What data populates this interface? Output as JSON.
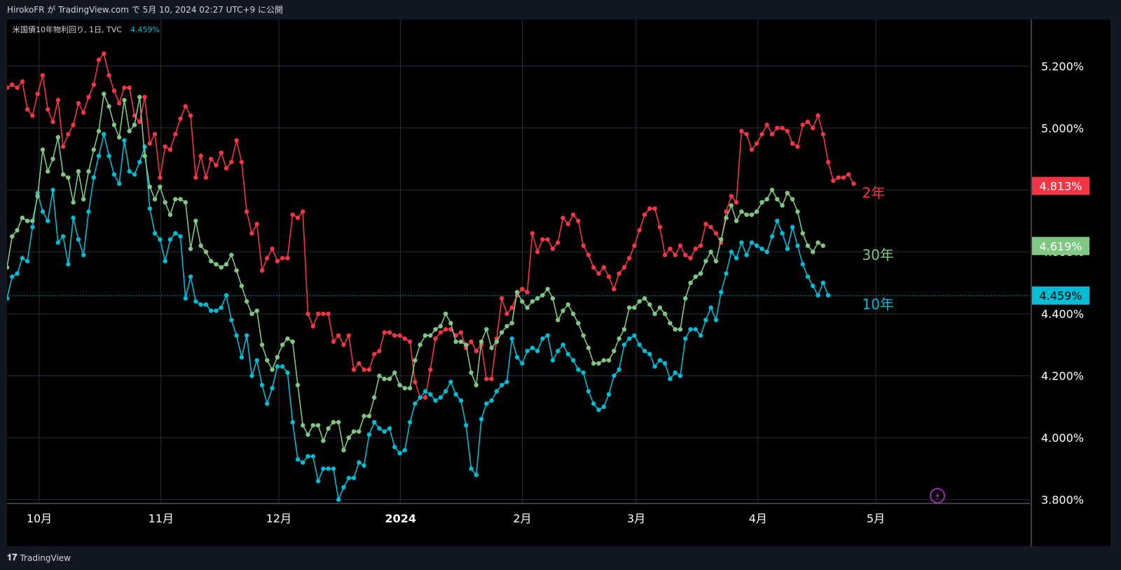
{
  "header": {
    "publish_text": "HirokoFR が TradingView.com で 5月 10, 2024 02:27 UTC+9 に公開"
  },
  "legend": {
    "symbol": "米国債10年物利回り, 1日, TVC",
    "value": "4.459%"
  },
  "footer": {
    "brand": "TradingView",
    "logo_icon": "tradingview-logo-icon"
  },
  "colors": {
    "y2": "#f23645",
    "y10": "#00bcd4",
    "y30": "#81c784",
    "grid": "#2a2e39",
    "axis_text": "#ffffff"
  },
  "chart_data": {
    "type": "line",
    "title": "米国債10年物利回り, 1日, TVC",
    "x_ticks": [
      {
        "label": "10月",
        "day": 0
      },
      {
        "label": "11月",
        "day": 31
      },
      {
        "label": "12月",
        "day": 61
      },
      {
        "label": "2024",
        "day": 92
      },
      {
        "label": "2月",
        "day": 123
      },
      {
        "label": "3月",
        "day": 152
      },
      {
        "label": "4月",
        "day": 183
      },
      {
        "label": "5月",
        "day": 213
      }
    ],
    "y_ticks": [
      "5.200%",
      "5.000%",
      "4.800%",
      "4.600%",
      "4.400%",
      "4.200%",
      "4.000%",
      "3.800%"
    ],
    "y_tick_values": [
      5.2,
      5.0,
      4.8,
      4.6,
      4.4,
      4.2,
      4.0,
      3.8
    ],
    "ylim": [
      3.79,
      5.35
    ],
    "grid": true,
    "current_line": 4.459,
    "series": [
      {
        "name": "2年",
        "key": "y2",
        "last_label": "4.813%",
        "last_value": 4.813,
        "values": [
          5.13,
          5.14,
          5.13,
          5.15,
          5.06,
          5.04,
          5.11,
          5.17,
          5.06,
          5.02,
          5.09,
          4.94,
          4.98,
          5.01,
          5.08,
          5.05,
          5.1,
          5.14,
          5.22,
          5.24,
          5.17,
          5.12,
          5.08,
          5.13,
          5.13,
          5.04,
          5.02,
          5.1,
          4.95,
          4.98,
          4.84,
          4.94,
          4.93,
          4.98,
          5.03,
          5.07,
          5.04,
          4.84,
          4.91,
          4.84,
          4.9,
          4.88,
          4.92,
          4.87,
          4.89,
          4.96,
          4.89,
          4.73,
          4.66,
          4.69,
          4.54,
          4.58,
          4.61,
          4.57,
          4.58,
          4.58,
          4.72,
          4.71,
          4.73,
          4.4,
          4.36,
          4.4,
          4.4,
          4.4,
          4.31,
          4.33,
          4.3,
          4.33,
          4.22,
          4.24,
          4.22,
          4.22,
          4.27,
          4.28,
          4.34,
          4.34,
          4.33,
          4.33,
          4.32,
          4.31,
          4.18,
          4.13,
          4.13,
          4.22,
          4.32,
          4.34,
          4.35,
          4.35,
          4.33,
          4.34,
          4.29,
          4.31,
          4.28,
          4.3,
          4.19,
          4.19,
          4.32,
          4.45,
          4.4,
          4.42,
          4.46,
          4.48,
          4.47,
          4.66,
          4.6,
          4.64,
          4.64,
          4.61,
          4.63,
          4.71,
          4.69,
          4.72,
          4.7,
          4.62,
          4.59,
          4.55,
          4.53,
          4.55,
          4.52,
          4.48,
          4.53,
          4.55,
          4.58,
          4.62,
          4.67,
          4.72,
          4.74,
          4.74,
          4.68,
          4.59,
          4.61,
          4.59,
          4.62,
          4.59,
          4.58,
          4.61,
          4.62,
          4.69,
          4.68,
          4.66,
          4.63,
          4.73,
          4.78,
          4.76,
          4.99,
          4.98,
          4.93,
          4.95,
          4.98,
          5.01,
          4.98,
          5.0,
          5.0,
          4.99,
          4.95,
          4.94,
          5.01,
          5.02,
          5.0,
          5.04,
          4.98,
          4.89,
          4.83,
          4.84,
          4.84,
          4.85,
          4.82
        ]
      },
      {
        "name": "10年",
        "key": "y10",
        "last_label": "4.459%",
        "last_value": 4.459,
        "values": [
          4.45,
          4.52,
          4.53,
          4.58,
          4.57,
          4.68,
          4.79,
          4.73,
          4.7,
          4.8,
          4.63,
          4.65,
          4.56,
          4.71,
          4.64,
          4.59,
          4.73,
          4.84,
          4.91,
          4.98,
          4.91,
          4.85,
          4.82,
          4.96,
          4.86,
          4.85,
          4.89,
          4.94,
          4.74,
          4.66,
          4.64,
          4.57,
          4.64,
          4.66,
          4.65,
          4.45,
          4.52,
          4.44,
          4.43,
          4.43,
          4.41,
          4.41,
          4.42,
          4.46,
          4.38,
          4.33,
          4.26,
          4.33,
          4.2,
          4.25,
          4.17,
          4.11,
          4.16,
          4.23,
          4.23,
          4.21,
          4.05,
          3.93,
          3.92,
          3.94,
          3.94,
          3.86,
          3.9,
          3.9,
          3.9,
          3.8,
          3.84,
          3.87,
          3.87,
          3.92,
          3.91,
          4.01,
          4.05,
          4.03,
          4.02,
          4.03,
          3.97,
          3.95,
          3.96,
          4.05,
          4.11,
          4.13,
          4.15,
          4.14,
          4.12,
          4.13,
          4.15,
          4.18,
          4.14,
          4.12,
          4.04,
          3.9,
          3.88,
          4.06,
          4.11,
          4.12,
          4.15,
          4.17,
          4.18,
          4.32,
          4.26,
          4.24,
          4.28,
          4.29,
          4.28,
          4.32,
          4.33,
          4.25,
          4.28,
          4.3,
          4.27,
          4.25,
          4.22,
          4.21,
          4.15,
          4.11,
          4.09,
          4.1,
          4.14,
          4.2,
          4.22,
          4.3,
          4.32,
          4.33,
          4.3,
          4.28,
          4.27,
          4.23,
          4.25,
          4.24,
          4.19,
          4.21,
          4.2,
          4.32,
          4.35,
          4.35,
          4.33,
          4.38,
          4.42,
          4.38,
          4.47,
          4.53,
          4.6,
          4.58,
          4.63,
          4.59,
          4.63,
          4.62,
          4.61,
          4.6,
          4.65,
          4.7,
          4.66,
          4.61,
          4.68,
          4.62,
          4.56,
          4.52,
          4.49,
          4.46,
          4.5,
          4.46
        ]
      },
      {
        "name": "30年",
        "key": "y30",
        "last_label": "4.619%",
        "last_value": 4.619,
        "values": [
          4.55,
          4.65,
          4.67,
          4.71,
          4.7,
          4.7,
          4.78,
          4.93,
          4.86,
          4.9,
          4.97,
          4.85,
          4.84,
          4.76,
          4.86,
          4.77,
          4.86,
          4.93,
          4.99,
          5.11,
          5.07,
          5.01,
          4.97,
          5.09,
          4.99,
          5.01,
          5.1,
          4.91,
          4.81,
          4.77,
          4.81,
          4.76,
          4.72,
          4.77,
          4.77,
          4.76,
          4.61,
          4.7,
          4.62,
          4.6,
          4.57,
          4.56,
          4.55,
          4.56,
          4.59,
          4.54,
          4.49,
          4.44,
          4.4,
          4.41,
          4.3,
          4.25,
          4.22,
          4.26,
          4.3,
          4.32,
          4.31,
          4.17,
          4.04,
          4.01,
          4.04,
          4.04,
          3.99,
          4.03,
          4.05,
          4.05,
          3.96,
          4.0,
          4.02,
          4.02,
          4.07,
          4.07,
          4.13,
          4.2,
          4.19,
          4.19,
          4.21,
          4.17,
          4.16,
          4.16,
          4.25,
          4.3,
          4.33,
          4.33,
          4.35,
          4.36,
          4.4,
          4.37,
          4.31,
          4.31,
          4.3,
          4.21,
          4.17,
          4.31,
          4.35,
          4.29,
          4.31,
          4.34,
          4.36,
          4.37,
          4.47,
          4.44,
          4.42,
          4.44,
          4.45,
          4.46,
          4.48,
          4.45,
          4.38,
          4.41,
          4.43,
          4.4,
          4.37,
          4.33,
          4.29,
          4.24,
          4.24,
          4.25,
          4.25,
          4.28,
          4.32,
          4.35,
          4.42,
          4.42,
          4.44,
          4.45,
          4.43,
          4.4,
          4.42,
          4.4,
          4.37,
          4.35,
          4.35,
          4.45,
          4.5,
          4.52,
          4.53,
          4.57,
          4.6,
          4.57,
          4.64,
          4.71,
          4.75,
          4.7,
          4.73,
          4.72,
          4.72,
          4.73,
          4.76,
          4.77,
          4.8,
          4.77,
          4.75,
          4.79,
          4.77,
          4.73,
          4.66,
          4.62,
          4.6,
          4.63,
          4.62
        ]
      }
    ]
  }
}
